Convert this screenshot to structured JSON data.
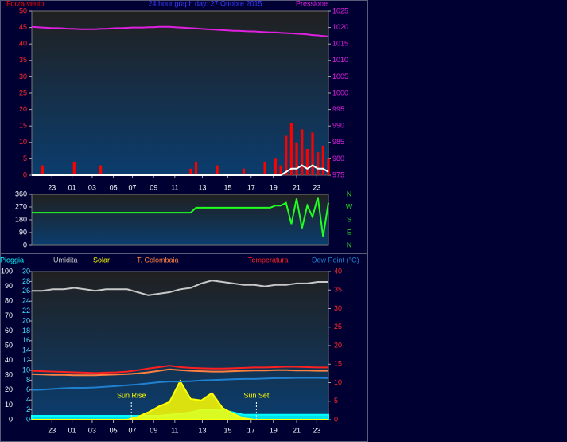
{
  "chart_data": [
    {
      "type": "line",
      "title": "24 hour graph day: 27 Ottobre 2015",
      "title_color": "#3a3aff",
      "x": [
        0,
        0.5,
        1,
        1.5,
        2,
        2.5,
        3,
        3.5,
        4,
        4.5,
        5,
        5.5,
        6,
        6.5,
        7,
        7.5,
        8,
        8.5,
        9,
        9.5,
        10,
        10.5,
        11,
        11.5,
        12,
        12.5,
        13,
        13.5,
        14,
        14.5,
        15,
        15.5,
        16,
        16.5,
        17,
        17.5,
        18,
        18.5,
        19,
        19.5,
        20,
        20.5,
        21,
        21.5,
        22,
        22.5,
        23,
        23.5,
        24,
        24.5,
        25,
        25.5,
        26,
        26.5,
        27,
        27.5,
        28
      ],
      "xlim": [
        0,
        28
      ],
      "xticks": [
        {
          "value": 1.9,
          "label": "23"
        },
        {
          "value": 3.8,
          "label": "01"
        },
        {
          "value": 5.7,
          "label": "03"
        },
        {
          "value": 7.7,
          "label": "05"
        },
        {
          "value": 9.5,
          "label": "07"
        },
        {
          "value": 11.5,
          "label": "09"
        },
        {
          "value": 13.5,
          "label": "11"
        },
        {
          "value": 16.1,
          "label": "13"
        },
        {
          "value": 18.5,
          "label": "15"
        },
        {
          "value": 20.7,
          "label": "17"
        },
        {
          "value": 22.8,
          "label": "19"
        },
        {
          "value": 25,
          "label": "21"
        },
        {
          "value": 26.9,
          "label": "23"
        }
      ],
      "ylim": [
        0,
        50
      ],
      "yticks": [
        0,
        5,
        10,
        15,
        20,
        25,
        30,
        35,
        40,
        45,
        50
      ],
      "ycolor": "#ff2a2a",
      "y2lim": [
        975,
        1025
      ],
      "y2ticks": [
        975,
        980,
        985,
        990,
        995,
        1000,
        1005,
        1010,
        1015,
        1020,
        1025
      ],
      "y2color": "#e020e0",
      "series": [
        {
          "name": "Forza vento",
          "color": "#ff0000",
          "style": "bar",
          "values": [
            0,
            0,
            3,
            0,
            0,
            0,
            0,
            0,
            4,
            0,
            0,
            0,
            0,
            3,
            0,
            0,
            0,
            0,
            0,
            0,
            0,
            0,
            0,
            0,
            0,
            0,
            0,
            0,
            0,
            0,
            2,
            4,
            0,
            0,
            0,
            3,
            0,
            0,
            0,
            0,
            2,
            0,
            0,
            0,
            4,
            0,
            5,
            3,
            12,
            16,
            10,
            14,
            8,
            13,
            7,
            9,
            5
          ]
        },
        {
          "color": "#ffffff",
          "style": "line",
          "values": [
            0,
            0,
            0,
            0,
            0,
            0,
            0,
            0,
            0,
            0,
            0,
            0,
            0,
            0,
            0,
            0,
            0,
            0,
            0,
            0,
            0,
            0,
            0,
            0,
            0,
            0,
            0,
            0,
            0,
            0,
            0,
            0,
            0,
            0,
            0,
            0,
            0,
            0,
            0,
            0,
            0,
            0,
            0,
            0,
            0,
            0,
            0,
            0,
            1,
            2,
            2,
            3,
            2,
            3,
            2,
            2,
            1
          ]
        },
        {
          "name": "Pressione",
          "color": "#e020e0",
          "style": "line",
          "axis": "y2",
          "values": [
            1020.2,
            1020.1,
            1020,
            1019.9,
            1019.8,
            1019.8,
            1019.7,
            1019.6,
            1019.6,
            1019.5,
            1019.5,
            1019.5,
            1019.5,
            1019.6,
            1019.6,
            1019.7,
            1019.8,
            1019.8,
            1019.9,
            1020,
            1020,
            1020,
            1020.1,
            1020.1,
            1020.2,
            1020.2,
            1020.2,
            1020.1,
            1020,
            1019.9,
            1019.8,
            1019.7,
            1019.6,
            1019.5,
            1019.4,
            1019.3,
            1019.2,
            1019.1,
            1019,
            1019,
            1018.9,
            1018.8,
            1018.8,
            1018.7,
            1018.6,
            1018.5,
            1018.5,
            1018.4,
            1018.3,
            1018.2,
            1018.1,
            1018,
            1017.9,
            1017.7,
            1017.6,
            1017.4,
            1017.3
          ]
        }
      ]
    },
    {
      "type": "line",
      "x": [
        0,
        0.5,
        1,
        1.5,
        2,
        2.5,
        3,
        3.5,
        4,
        4.5,
        5,
        5.5,
        6,
        6.5,
        7,
        7.5,
        8,
        8.5,
        9,
        9.5,
        10,
        10.5,
        11,
        11.5,
        12,
        12.5,
        13,
        13.5,
        14,
        14.5,
        15,
        15.5,
        16,
        16.5,
        17,
        17.5,
        18,
        18.5,
        19,
        19.5,
        20,
        20.5,
        21,
        21.5,
        22,
        22.5,
        23,
        23.5,
        24,
        24.5,
        25,
        25.5,
        26,
        26.5,
        27,
        27.5,
        28
      ],
      "xlim": [
        0,
        28
      ],
      "ylim": [
        0,
        360
      ],
      "yticks": [
        0,
        90,
        180,
        270,
        360
      ],
      "ycolor": "#ffffff",
      "y2lim": [
        0,
        360
      ],
      "y2ticks": [
        {
          "value": 360,
          "label": "N"
        },
        {
          "value": 270,
          "label": "W"
        },
        {
          "value": 180,
          "label": "S"
        },
        {
          "value": 90,
          "label": "E"
        },
        {
          "value": 0,
          "label": "N"
        }
      ],
      "y2color": "#20e020",
      "series": [
        {
          "color": "#20ff20",
          "style": "line",
          "values": [
            230,
            230,
            230,
            230,
            230,
            230,
            230,
            230,
            230,
            230,
            230,
            230,
            230,
            230,
            230,
            230,
            230,
            230,
            230,
            230,
            230,
            230,
            230,
            230,
            230,
            230,
            230,
            230,
            230,
            230,
            230,
            265,
            265,
            265,
            265,
            265,
            265,
            265,
            265,
            265,
            265,
            265,
            265,
            265,
            265,
            265,
            280,
            280,
            300,
            150,
            330,
            120,
            280,
            200,
            340,
            60,
            300
          ]
        }
      ]
    },
    {
      "type": "line",
      "x": [
        0,
        1,
        2,
        3,
        4,
        5,
        6,
        7,
        8,
        9,
        10,
        11,
        12,
        13,
        14,
        15,
        16,
        17,
        18,
        19,
        20,
        21,
        22,
        23,
        24,
        25,
        26,
        27,
        28
      ],
      "xlim": [
        0,
        28
      ],
      "xticks": [
        {
          "value": 1.9,
          "label": "23"
        },
        {
          "value": 3.8,
          "label": "01"
        },
        {
          "value": 5.7,
          "label": "03"
        },
        {
          "value": 7.7,
          "label": "05"
        },
        {
          "value": 9.5,
          "label": "07"
        },
        {
          "value": 11.5,
          "label": "09"
        },
        {
          "value": 13.5,
          "label": "11"
        },
        {
          "value": 16.1,
          "label": "13"
        },
        {
          "value": 18.5,
          "label": "15"
        },
        {
          "value": 20.7,
          "label": "17"
        },
        {
          "value": 22.8,
          "label": "19"
        },
        {
          "value": 25,
          "label": "21"
        },
        {
          "value": 26.9,
          "label": "23"
        }
      ],
      "ylim": [
        0,
        100
      ],
      "yticks": [
        0,
        10,
        20,
        30,
        40,
        50,
        60,
        70,
        80,
        90,
        100
      ],
      "ycolor": "#ffffff",
      "y3lim": [
        0,
        30
      ],
      "y3ticks": [
        0,
        2,
        4,
        6,
        8,
        10,
        12,
        14,
        16,
        18,
        20,
        22,
        24,
        26,
        28,
        30
      ],
      "y3color": "#40e0ff",
      "y2lim": [
        0,
        40
      ],
      "y2ticks": [
        0,
        5,
        10,
        15,
        20,
        25,
        30,
        35,
        40
      ],
      "y2color": "#ff2a2a",
      "series": [
        {
          "name": "Pioggia",
          "color": "#00ffff",
          "style": "area",
          "axis": "y3",
          "values": [
            0.8,
            0.8,
            0.8,
            0.8,
            0.8,
            0.8,
            0.8,
            0.8,
            0.8,
            0.8,
            0.8,
            0.8,
            0.8,
            1,
            1.2,
            1.5,
            2,
            2,
            2,
            1.5,
            1,
            1,
            1,
            1,
            1,
            1,
            1,
            1,
            1
          ]
        },
        {
          "name": "Umidita",
          "color": "#c8c8c8",
          "style": "line",
          "values": [
            87,
            87,
            88,
            88,
            89,
            88,
            87,
            88,
            88,
            88,
            86,
            84,
            85,
            86,
            88,
            89,
            92,
            94,
            93,
            92,
            91,
            91,
            90,
            91,
            91,
            92,
            92,
            93,
            93
          ]
        },
        {
          "name": "Solar",
          "color": "#ffff00",
          "style": "area",
          "values": [
            0,
            0,
            0,
            0,
            0,
            0,
            0,
            0,
            0,
            0,
            2,
            5,
            9,
            12,
            26,
            14,
            13,
            18,
            8,
            4,
            1,
            0,
            0,
            0,
            0,
            0,
            0,
            0,
            0
          ]
        },
        {
          "name": "T. Colombaia",
          "color": "#ff8040",
          "style": "line",
          "axis": "y2",
          "values": [
            12.3,
            12.2,
            12.1,
            12.1,
            12,
            12,
            12,
            12.1,
            12.2,
            12.3,
            12.5,
            12.8,
            13.2,
            13.6,
            13.4,
            13.2,
            13.1,
            13,
            13,
            13.1,
            13.2,
            13.3,
            13.3,
            13.4,
            13.4,
            13.3,
            13.3,
            13.2,
            13.2
          ]
        },
        {
          "name": "Temperatura",
          "color": "#ff2020",
          "style": "line",
          "axis": "y2",
          "values": [
            13.2,
            13.1,
            13,
            12.9,
            12.8,
            12.7,
            12.6,
            12.7,
            12.8,
            13,
            13.4,
            13.8,
            14.2,
            14.6,
            14.2,
            14,
            13.9,
            13.8,
            13.8,
            13.9,
            14,
            14.1,
            14.1,
            14.2,
            14.3,
            14.3,
            14.2,
            14.1,
            14.1
          ]
        },
        {
          "name": "Dew Point (°C)",
          "color": "#2080d0",
          "style": "line",
          "axis": "y2",
          "values": [
            8,
            8.1,
            8.3,
            8.5,
            8.6,
            8.6,
            8.7,
            8.9,
            9.1,
            9.3,
            9.5,
            9.8,
            10.1,
            10.3,
            10.3,
            10.4,
            10.6,
            10.7,
            10.8,
            10.9,
            11,
            11,
            11.1,
            11.2,
            11.2,
            11.3,
            11.3,
            11.3,
            11.2
          ]
        }
      ],
      "annotations": [
        {
          "text": "Sun Rise",
          "x": 9.4
        },
        {
          "text": "Sun Set",
          "x": 21.2
        }
      ]
    }
  ]
}
